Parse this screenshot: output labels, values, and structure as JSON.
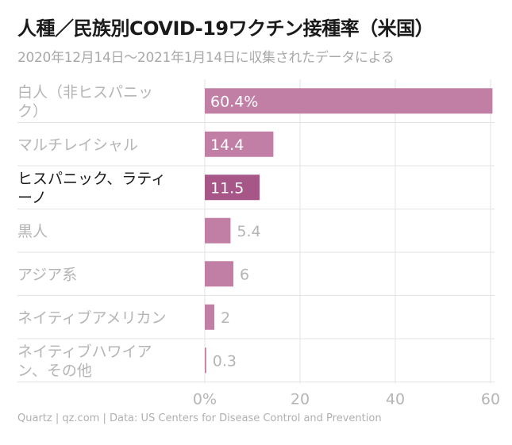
{
  "title": "人種／民族別COVID-19ワクチン接種率（米国）",
  "subtitle": "2020年12月14日〜2021年1月14日に収集されたデータによる",
  "source": "Quartz | qz.com | Data: US Centers for Disease Control and Prevention",
  "colors": {
    "bar": "#c27fa5",
    "highlight_bar": "#a65687",
    "label_muted": "#b5b5b5",
    "label_highlight": "#1a1a1a",
    "value_inside": "#ffffff",
    "value_outside": "#b5b5b5",
    "grid": "#e3e3e3"
  },
  "chart_data": {
    "type": "bar",
    "orientation": "horizontal",
    "categories": [
      [
        "白人（非ヒスパニッ",
        "ク）"
      ],
      [
        "マルチレイシャル"
      ],
      [
        "ヒスパニック、ラティ",
        "ーノ"
      ],
      [
        "黒人"
      ],
      [
        "アジア系"
      ],
      [
        "ネイティブアメリカン"
      ],
      [
        "ネイティブハワイア",
        "ン、その他"
      ]
    ],
    "values": [
      60.4,
      14.4,
      11.5,
      5.4,
      6,
      2,
      0.3
    ],
    "value_labels": [
      "60.4%",
      "14.4",
      "11.5",
      "5.4",
      "6",
      "2",
      "0.3"
    ],
    "highlight_index": 2,
    "xlim": [
      0,
      60
    ],
    "xticks": [
      0,
      20,
      40,
      60
    ],
    "xtick_labels": [
      "0%",
      "20",
      "40",
      "60"
    ],
    "xlabel": "",
    "ylabel": "",
    "grid": "vertical"
  }
}
